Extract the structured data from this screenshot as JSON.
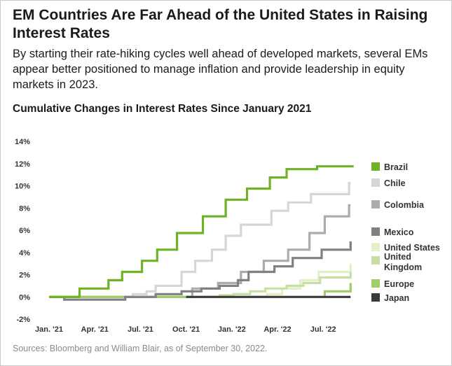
{
  "header": {
    "title": "EM Countries Are Far Ahead of the United States in Raising Interest Rates",
    "subtitle": "By starting their rate-hiking cycles well ahead of developed markets, several EMs appear better positioned to manage inflation and provide leadership in equity markets in 2023."
  },
  "footer": {
    "source": "Sources: Bloomberg and William Blair, as of September 30, 2022."
  },
  "chart_data": {
    "type": "line",
    "title": "Cumulative Changes in Interest Rates Since January 2021",
    "xlabel": "",
    "ylabel": "",
    "ylim": [
      -2,
      14
    ],
    "y_ticks": [
      "14%",
      "12%",
      "10%",
      "8%",
      "6%",
      "4%",
      "2%",
      "0%",
      "-2%"
    ],
    "y_tick_values": [
      14,
      12,
      10,
      8,
      6,
      4,
      2,
      0,
      -2
    ],
    "x_ticks": [
      "Jan. '21",
      "Apr. '21",
      "Jul. '21",
      "Oct. '21",
      "Jan. '22",
      "Apr. '22",
      "Jul. '22"
    ],
    "x_tick_values": [
      0,
      3,
      6,
      9,
      12,
      15,
      18
    ],
    "x_range": [
      0,
      20.2
    ],
    "grid": false,
    "legend_position": "right",
    "step_line": true,
    "series": [
      {
        "name": "Brazil",
        "color": "#6fb324",
        "points": [
          [
            0,
            0
          ],
          [
            2,
            0
          ],
          [
            2,
            0.75
          ],
          [
            3.9,
            0.75
          ],
          [
            3.9,
            1.5
          ],
          [
            4.8,
            1.5
          ],
          [
            4.8,
            2.25
          ],
          [
            6.1,
            2.25
          ],
          [
            6.1,
            3.25
          ],
          [
            7.1,
            3.25
          ],
          [
            7.1,
            4.25
          ],
          [
            8.4,
            4.25
          ],
          [
            8.4,
            5.75
          ],
          [
            10.1,
            5.75
          ],
          [
            10.1,
            7.25
          ],
          [
            11.6,
            7.25
          ],
          [
            11.6,
            8.75
          ],
          [
            13,
            8.75
          ],
          [
            13,
            9.75
          ],
          [
            14.5,
            9.75
          ],
          [
            14.5,
            10.75
          ],
          [
            15.6,
            10.75
          ],
          [
            15.6,
            11.5
          ],
          [
            17.6,
            11.5
          ],
          [
            17.6,
            11.75
          ],
          [
            20,
            11.75
          ]
        ]
      },
      {
        "name": "Chile",
        "color": "#d6d6d6",
        "points": [
          [
            0,
            0
          ],
          [
            5.5,
            0
          ],
          [
            5.5,
            0.25
          ],
          [
            6.4,
            0.25
          ],
          [
            6.4,
            0.5
          ],
          [
            7,
            0.5
          ],
          [
            7,
            1
          ],
          [
            8.7,
            1
          ],
          [
            8.7,
            2.25
          ],
          [
            9.6,
            2.25
          ],
          [
            9.6,
            3.25
          ],
          [
            10.7,
            3.25
          ],
          [
            10.7,
            4.25
          ],
          [
            11.6,
            4.25
          ],
          [
            11.6,
            5.5
          ],
          [
            12.6,
            5.5
          ],
          [
            12.6,
            6.5
          ],
          [
            14.6,
            6.5
          ],
          [
            14.6,
            7.75
          ],
          [
            15.7,
            7.75
          ],
          [
            15.7,
            8.5
          ],
          [
            17.2,
            8.5
          ],
          [
            17.2,
            9.25
          ],
          [
            19.7,
            9.25
          ],
          [
            19.7,
            10.25
          ],
          [
            19.8,
            10.25
          ]
        ]
      },
      {
        "name": "Colombia",
        "color": "#ababab",
        "points": [
          [
            0,
            0
          ],
          [
            9.4,
            0
          ],
          [
            9.4,
            0.75
          ],
          [
            11.1,
            0.75
          ],
          [
            11.1,
            1.25
          ],
          [
            12.6,
            1.25
          ],
          [
            12.6,
            2.25
          ],
          [
            14.1,
            2.25
          ],
          [
            14.1,
            3.25
          ],
          [
            15.7,
            3.25
          ],
          [
            15.7,
            4.25
          ],
          [
            17.1,
            4.25
          ],
          [
            17.1,
            5.75
          ],
          [
            18.1,
            5.75
          ],
          [
            18.1,
            7.25
          ],
          [
            19.7,
            7.25
          ],
          [
            19.7,
            8.25
          ],
          [
            19.8,
            8.25
          ]
        ]
      },
      {
        "name": "Mexico",
        "color": "#808080",
        "points": [
          [
            0,
            0
          ],
          [
            1,
            0
          ],
          [
            1,
            -0.25
          ],
          [
            5,
            -0.25
          ],
          [
            5,
            0
          ],
          [
            7,
            0
          ],
          [
            7,
            0.25
          ],
          [
            8.7,
            0.25
          ],
          [
            8.7,
            0.5
          ],
          [
            10,
            0.5
          ],
          [
            10,
            0.75
          ],
          [
            11.2,
            0.75
          ],
          [
            11.2,
            1
          ],
          [
            12.4,
            1
          ],
          [
            12.4,
            1.5
          ],
          [
            13.1,
            1.5
          ],
          [
            13.1,
            2.25
          ],
          [
            14.8,
            2.25
          ],
          [
            14.8,
            2.75
          ],
          [
            16,
            2.75
          ],
          [
            16,
            3.5
          ],
          [
            17.9,
            3.5
          ],
          [
            17.9,
            4.25
          ],
          [
            19.8,
            4.25
          ],
          [
            19.8,
            5
          ]
        ]
      },
      {
        "name": "United States",
        "color": "#e2efc9",
        "points": [
          [
            0,
            0
          ],
          [
            14.3,
            0
          ],
          [
            14.3,
            0.25
          ],
          [
            15.3,
            0.25
          ],
          [
            15.3,
            0.75
          ],
          [
            16.5,
            0.75
          ],
          [
            16.5,
            1.5
          ],
          [
            17.7,
            1.5
          ],
          [
            17.7,
            2.25
          ],
          [
            19.8,
            2.25
          ],
          [
            19.8,
            3
          ]
        ]
      },
      {
        "name": "United Kingdom",
        "color": "#c7e0a2",
        "points": [
          [
            0,
            0
          ],
          [
            11.2,
            0
          ],
          [
            11.2,
            0.15
          ],
          [
            12.1,
            0.15
          ],
          [
            12.1,
            0.25
          ],
          [
            13.2,
            0.25
          ],
          [
            13.2,
            0.5
          ],
          [
            14.2,
            0.5
          ],
          [
            14.2,
            0.75
          ],
          [
            15.6,
            0.75
          ],
          [
            15.6,
            1
          ],
          [
            16.7,
            1
          ],
          [
            16.7,
            1.25
          ],
          [
            17.8,
            1.25
          ],
          [
            17.8,
            1.75
          ],
          [
            19.8,
            1.75
          ],
          [
            19.8,
            2.25
          ]
        ]
      },
      {
        "name": "Europe",
        "color": "#9fce68",
        "points": [
          [
            0,
            0
          ],
          [
            18.1,
            0
          ],
          [
            18.1,
            0.5
          ],
          [
            19.8,
            0.5
          ],
          [
            19.8,
            1.25
          ]
        ]
      },
      {
        "name": "Japan",
        "color": "#3a3a3a",
        "points": [
          [
            9,
            0
          ],
          [
            19.8,
            0
          ]
        ]
      }
    ]
  }
}
